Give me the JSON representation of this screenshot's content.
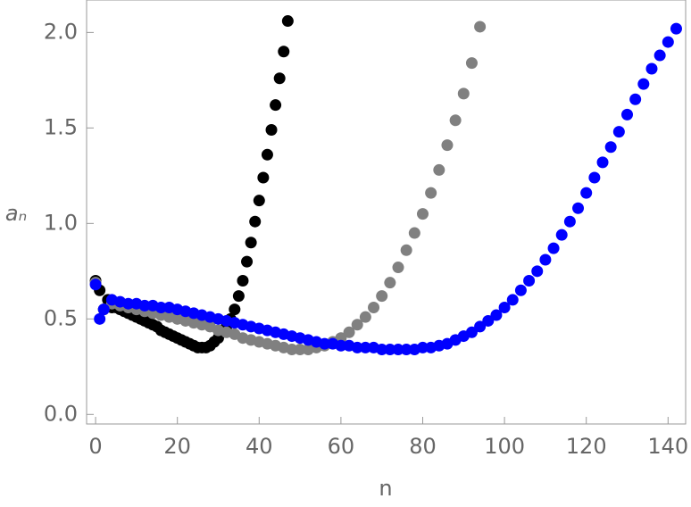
{
  "chart_data": {
    "type": "scatter",
    "xlabel": "n",
    "ylabel": "aₙ",
    "xlim": [
      -2.2,
      144.3
    ],
    "ylim": [
      -0.05,
      2.17
    ],
    "xticks": [
      0,
      20,
      40,
      60,
      80,
      100,
      120,
      140
    ],
    "yticks": [
      {
        "value": 0,
        "label": "0.0"
      },
      0.5,
      {
        "value": 1,
        "label": "1.0"
      },
      1.5,
      {
        "value": 2,
        "label": "2.0"
      }
    ],
    "series": [
      {
        "color": "#000000",
        "x": [
          0,
          1,
          2,
          3,
          4,
          5,
          6,
          7,
          8,
          9,
          10,
          11,
          12,
          13,
          14,
          15,
          16,
          17,
          18,
          19,
          20,
          21,
          22,
          23,
          24,
          25,
          26,
          27,
          28,
          29,
          30,
          31,
          32,
          33,
          34,
          35,
          36,
          37,
          38,
          39,
          40,
          41,
          42,
          43,
          44,
          45,
          46,
          47
        ],
        "values": [
          0.7,
          0.65,
          0.55,
          0.6,
          0.56,
          0.56,
          0.55,
          0.54,
          0.53,
          0.52,
          0.51,
          0.5,
          0.49,
          0.48,
          0.47,
          0.46,
          0.44,
          0.43,
          0.42,
          0.41,
          0.4,
          0.39,
          0.38,
          0.37,
          0.36,
          0.35,
          0.35,
          0.35,
          0.36,
          0.38,
          0.4,
          0.43,
          0.46,
          0.5,
          0.55,
          0.62,
          0.7,
          0.8,
          0.9,
          1.01,
          1.12,
          1.24,
          1.36,
          1.49,
          1.62,
          1.76,
          1.9,
          2.06
        ]
      },
      {
        "color": "#808080",
        "x": [
          0,
          2,
          4,
          6,
          8,
          10,
          12,
          14,
          16,
          18,
          20,
          22,
          24,
          26,
          28,
          30,
          32,
          34,
          36,
          38,
          40,
          42,
          44,
          46,
          48,
          50,
          52,
          54,
          56,
          58,
          60,
          62,
          64,
          66,
          68,
          70,
          72,
          74,
          76,
          78,
          80,
          82,
          84,
          86,
          88,
          90,
          92,
          94
        ],
        "values": [
          0.69,
          0.55,
          0.58,
          0.57,
          0.56,
          0.55,
          0.54,
          0.53,
          0.52,
          0.51,
          0.5,
          0.49,
          0.48,
          0.47,
          0.46,
          0.44,
          0.43,
          0.42,
          0.4,
          0.39,
          0.38,
          0.37,
          0.36,
          0.35,
          0.34,
          0.34,
          0.34,
          0.35,
          0.36,
          0.38,
          0.4,
          0.43,
          0.47,
          0.51,
          0.56,
          0.62,
          0.69,
          0.77,
          0.86,
          0.95,
          1.05,
          1.16,
          1.28,
          1.41,
          1.54,
          1.68,
          1.84,
          2.03
        ]
      },
      {
        "color": "#0000ff",
        "x": [
          0,
          1,
          2,
          4,
          6,
          8,
          10,
          12,
          14,
          16,
          18,
          20,
          22,
          24,
          26,
          28,
          30,
          32,
          34,
          36,
          38,
          40,
          42,
          44,
          46,
          48,
          50,
          52,
          54,
          56,
          58,
          60,
          62,
          64,
          66,
          68,
          70,
          72,
          74,
          76,
          78,
          80,
          82,
          84,
          86,
          88,
          90,
          92,
          94,
          96,
          98,
          100,
          102,
          104,
          106,
          108,
          110,
          112,
          114,
          116,
          118,
          120,
          122,
          124,
          126,
          128,
          130,
          132,
          134,
          136,
          138,
          140,
          142
        ],
        "values": [
          0.68,
          0.5,
          0.55,
          0.6,
          0.59,
          0.58,
          0.58,
          0.57,
          0.57,
          0.56,
          0.56,
          0.55,
          0.54,
          0.53,
          0.52,
          0.51,
          0.5,
          0.49,
          0.48,
          0.47,
          0.46,
          0.45,
          0.44,
          0.43,
          0.42,
          0.41,
          0.4,
          0.39,
          0.38,
          0.37,
          0.37,
          0.36,
          0.36,
          0.35,
          0.35,
          0.35,
          0.34,
          0.34,
          0.34,
          0.34,
          0.34,
          0.35,
          0.35,
          0.36,
          0.37,
          0.39,
          0.41,
          0.43,
          0.46,
          0.49,
          0.52,
          0.56,
          0.6,
          0.65,
          0.7,
          0.75,
          0.81,
          0.87,
          0.94,
          1.01,
          1.08,
          1.16,
          1.24,
          1.32,
          1.4,
          1.48,
          1.57,
          1.65,
          1.73,
          1.81,
          1.88,
          1.95,
          2.02
        ]
      }
    ]
  }
}
